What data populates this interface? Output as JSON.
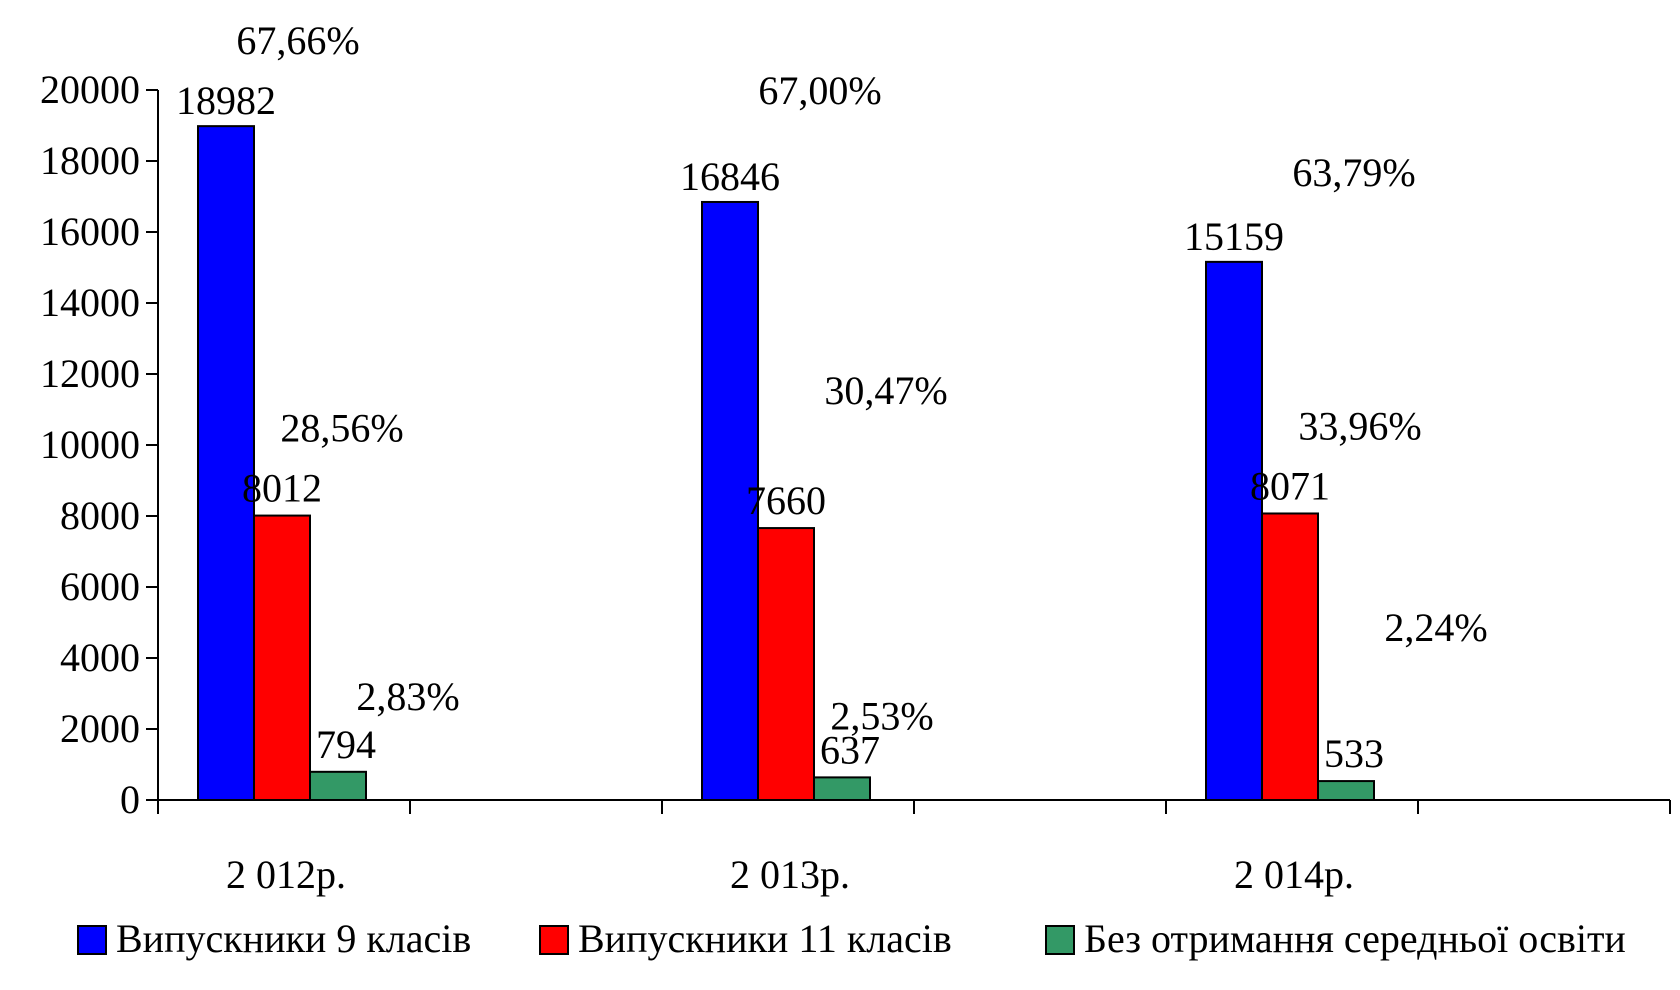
{
  "chart_data": {
    "type": "bar",
    "categories": [
      "2 012р.",
      "2 013р.",
      "2 014р."
    ],
    "series": [
      {
        "name": "Випускники 9 класів",
        "color": "#0000FF",
        "values": [
          18982,
          16846,
          15159
        ],
        "percent_labels": [
          "67,66%",
          "67,00%",
          "63,79%"
        ]
      },
      {
        "name": "Випускники 11 класів",
        "color": "#FF0000",
        "values": [
          8012,
          7660,
          8071
        ],
        "percent_labels": [
          "28,56%",
          "30,47%",
          "33,96%"
        ]
      },
      {
        "name": "Без отримання середньої освіти",
        "color": "#339966",
        "values": [
          794,
          637,
          533
        ],
        "percent_labels": [
          "2,83%",
          "2,53%",
          "2,24%"
        ]
      }
    ],
    "ylim": [
      0,
      20000
    ],
    "yticks": [
      0,
      2000,
      4000,
      6000,
      8000,
      10000,
      12000,
      14000,
      16000,
      18000,
      20000
    ],
    "title": "",
    "xlabel": "",
    "ylabel": "",
    "grid": false,
    "legend_position": "bottom"
  }
}
